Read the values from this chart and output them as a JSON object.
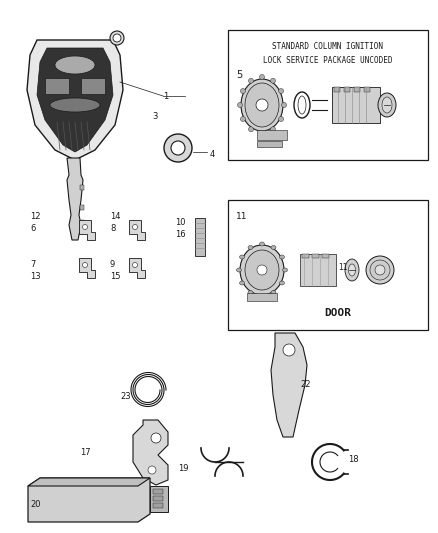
{
  "bg_color": "#ffffff",
  "fig_width": 4.38,
  "fig_height": 5.33,
  "dpi": 100,
  "box1_text_line1": "STANDARD COLUMN IGNITION",
  "box1_text_line2": "LOCK SERVICE PACKAGE UNCODED",
  "box1_label": "5",
  "box2_label": "11",
  "box2_text": "DOOR",
  "dark": "#1a1a1a",
  "gray": "#888888",
  "lightgray": "#cccccc",
  "midgray": "#aaaaaa"
}
